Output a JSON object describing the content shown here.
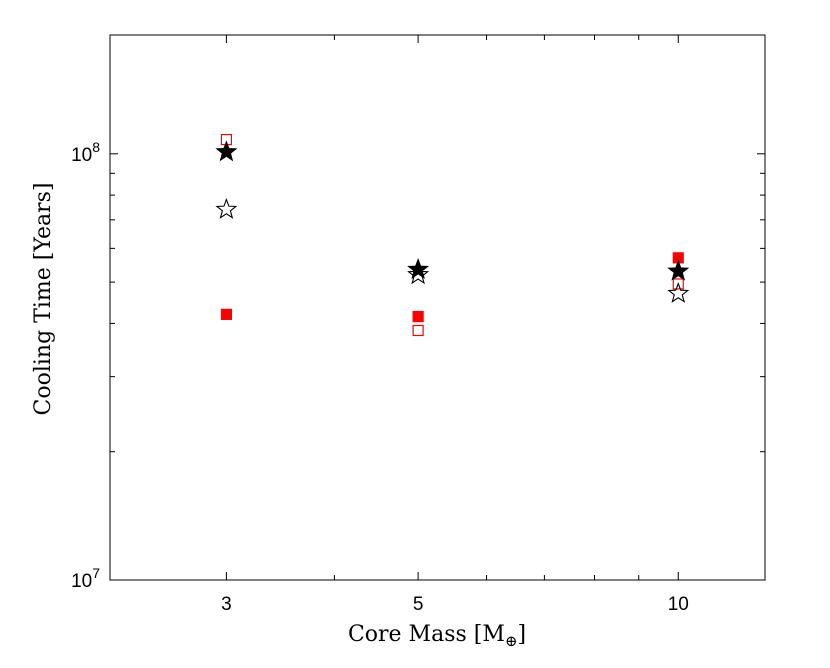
{
  "chart_data": {
    "type": "scatter",
    "title": "",
    "xlabel": "Core Mass [M",
    "xlabel_subscript": "⊕",
    "xlabel_suffix": "]",
    "ylabel": "Cooling Time [Years]",
    "xscale": "log",
    "yscale": "log",
    "xlim": [
      2.2,
      12.6
    ],
    "ylim": [
      10000000,
      190000000
    ],
    "xticks": [
      {
        "value": 3,
        "label": "3"
      },
      {
        "value": 5,
        "label": "5"
      },
      {
        "value": 10,
        "label": "10"
      }
    ],
    "xminor": [
      4,
      6,
      7,
      8,
      9
    ],
    "yticks": [
      {
        "value": 10000000,
        "base": "10",
        "exp": "7"
      },
      {
        "value": 100000000,
        "base": "10",
        "exp": "8"
      }
    ],
    "yminor": [
      20000000,
      30000000,
      40000000,
      50000000,
      60000000,
      70000000,
      80000000,
      90000000
    ],
    "grid": false,
    "legend": "none",
    "series": [
      {
        "name": "filled-red-square",
        "marker": "square",
        "filled": true,
        "color": "#ff0000",
        "points": [
          {
            "x": 3,
            "y": 42000000
          },
          {
            "x": 5,
            "y": 41500000
          },
          {
            "x": 10,
            "y": 57000000
          }
        ]
      },
      {
        "name": "open-red-square",
        "marker": "square",
        "filled": false,
        "color": "#ff0000",
        "points": [
          {
            "x": 3,
            "y": 108000000
          },
          {
            "x": 5,
            "y": 38500000
          },
          {
            "x": 10,
            "y": 49500000
          }
        ]
      },
      {
        "name": "filled-black-star",
        "marker": "star",
        "filled": true,
        "color": "#000000",
        "points": [
          {
            "x": 3,
            "y": 101000000
          },
          {
            "x": 5,
            "y": 53500000
          },
          {
            "x": 10,
            "y": 53000000
          }
        ]
      },
      {
        "name": "open-black-star",
        "marker": "star",
        "filled": false,
        "color": "#000000",
        "points": [
          {
            "x": 3,
            "y": 74000000
          },
          {
            "x": 5,
            "y": 52000000
          },
          {
            "x": 10,
            "y": 47000000
          }
        ]
      }
    ]
  }
}
